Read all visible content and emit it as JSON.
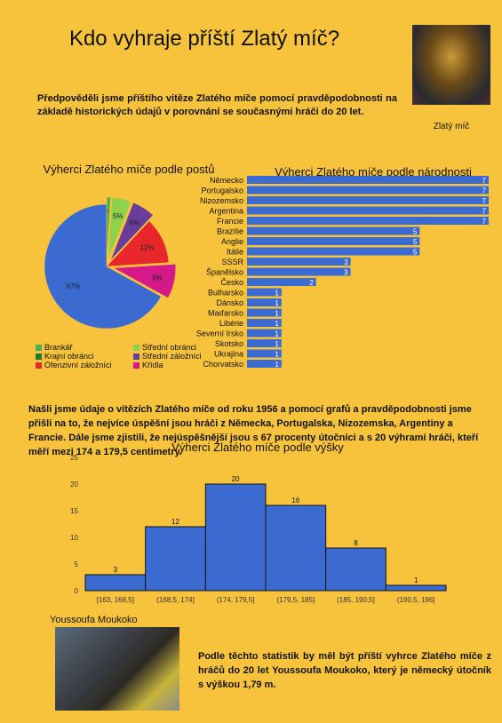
{
  "title": "Kdo vyhraje příští Zlatý míč?",
  "intro": "Předpověděli jsme příštího vítěze Zlatého míče pomocí pravděpodobnosti na základě historických údajů v porovnání se současnými hráči do 20 let.",
  "trophy_caption": "Zlatý míč",
  "finding": "Našli jsme údaje o vítězích Zlatého míče od roku 1956 a pomocí grafů a pravděpodobnosti jsme přišli na to, že nejvíce úspěšní jsou hráči z Německa, Portugalska, Nizozemska, Argentiny a Francie. Dále jsme zjistili, že nejúspěšnější jsou s 67 procenty útočníci a s 20 výhrami hráči, kteří měří mezi 174 a 179,5 centimetry.",
  "player_caption": "Youssoufa Moukoko",
  "conclusion": "Podle těchto statistik by měl být příští vyhrce Zlatého míče z hráčů do 20 let Youssoufa Moukoko, který je německý útočník s výškou 1,79 m.",
  "chart_data": [
    {
      "type": "pie",
      "title": "Výherci Zlatého míče podle postů",
      "slices": [
        {
          "label": "Brankář",
          "value": 1,
          "display": "1%",
          "color": "#4caf50"
        },
        {
          "label": "Střední obránci",
          "value": 5,
          "display": "5%",
          "color": "#8ed14b"
        },
        {
          "label": "Krajní obránci",
          "value": 0,
          "display": "",
          "color": "#1f7a3a"
        },
        {
          "label": "Střední záložníci",
          "value": 6,
          "display": "6%",
          "color": "#6a3d9a"
        },
        {
          "label": "Ofenzivní záložníci",
          "value": 12,
          "display": "12%",
          "color": "#e8272d"
        },
        {
          "label": "Křídla",
          "value": 9,
          "display": "9%",
          "color": "#d6188a"
        },
        {
          "label": "",
          "value": 67,
          "display": "67%",
          "color": "#3b6bd1"
        }
      ],
      "legend": [
        "Brankář",
        "Střední obránci",
        "Krajní obránci",
        "Střední záložníci",
        "Ofenzivní záložníci",
        "Křídla"
      ]
    },
    {
      "type": "bar",
      "orientation": "horizontal",
      "title": "Výherci Zlatého míče podle národnosti",
      "categories": [
        "Německo",
        "Portugalsko",
        "Nizozemsko",
        "Argentina",
        "Francie",
        "Brazílie",
        "Anglie",
        "Itálie",
        "SSSR",
        "Španělsko",
        "Česko",
        "Bulharsko",
        "Dánsko",
        "Maďarsko",
        "Libérie",
        "Severní Irsko",
        "Skotsko",
        "Ukrajina",
        "Chorvatsko"
      ],
      "values": [
        7,
        7,
        7,
        7,
        7,
        5,
        5,
        5,
        3,
        3,
        2,
        1,
        1,
        1,
        1,
        1,
        1,
        1,
        1
      ],
      "xlim": [
        0,
        7
      ],
      "color": "#3b6bd1"
    },
    {
      "type": "bar",
      "title": "Výherci Zlatého míče podle výšky",
      "categories": [
        "[163, 168,5]",
        "(168,5, 174]",
        "(174, 179,5]",
        "(179,5, 185]",
        "(185, 190,5]",
        "(190,5, 196]"
      ],
      "values": [
        3,
        12,
        20,
        16,
        8,
        1
      ],
      "ylim": [
        0,
        25
      ],
      "yticks": [
        0,
        5,
        10,
        15,
        20,
        25
      ],
      "color": "#3b6bd1"
    }
  ]
}
